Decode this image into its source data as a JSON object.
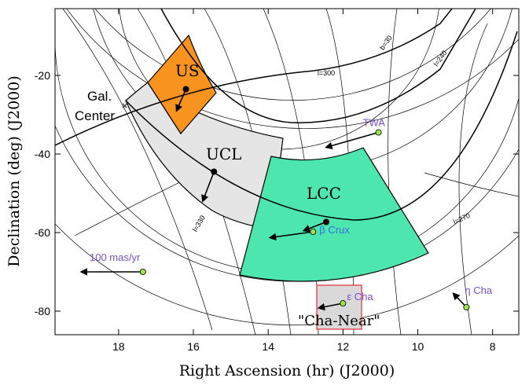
{
  "chart_data": {
    "type": "scatter",
    "xlabel": "Right Ascension (hr) (J2000)",
    "ylabel": "Declination (deg) (J2000)",
    "xlim": [
      19.7,
      7.3
    ],
    "ylim": [
      -86,
      -3
    ],
    "x_ticks": [
      18,
      16,
      14,
      12,
      10,
      8
    ],
    "y_ticks": [
      -20,
      -40,
      -60,
      -80
    ],
    "galactic_lon_labels": [
      {
        "text": "l=300",
        "ra": 12.45,
        "dec": -20
      },
      {
        "text": "l=330",
        "ra": 15.8,
        "dec": -58,
        "rotate": -60
      },
      {
        "text": "b=30",
        "ra": 10.8,
        "dec": -12,
        "rotate": -55
      },
      {
        "text": "l=240",
        "ra": 9.35,
        "dec": -16,
        "rotate": -55
      },
      {
        "text": "l=270",
        "ra": 8.8,
        "dec": -57,
        "rotate": -25
      }
    ],
    "annotations": {
      "gal_center_line1": "Gal.",
      "gal_center_line2": "Center",
      "scale_label": "100 mas/yr",
      "cha_near_label": "\"Cha-Near\""
    },
    "regions": [
      {
        "name": "US",
        "color": "#F7931E"
      },
      {
        "name": "UCL",
        "color": "#E5E5E5"
      },
      {
        "name": "LCC",
        "color": "#4DE6AE"
      },
      {
        "name": "Cha-Near",
        "color": "#D9D9D9",
        "border": "#E0303A"
      }
    ],
    "points": [
      {
        "name": "US",
        "ra": 16.2,
        "dec": -23.5,
        "color": "#000000",
        "label_color": "#000000",
        "pm": [
          16.45,
          -29
        ]
      },
      {
        "name": "UCL",
        "ra": 15.45,
        "dec": -44.5,
        "color": "#000000",
        "label_color": "#000000",
        "pm": [
          15.75,
          -52
        ]
      },
      {
        "name": "LCC",
        "ra": 12.45,
        "dec": -57.3,
        "color": "#000000",
        "label_color": "#000000",
        "pm": [
          13.05,
          -59.5
        ]
      },
      {
        "name": "TWA",
        "ra": 11.05,
        "dec": -34.5,
        "color": "#9BE34C",
        "label_color": "#7A4FD0",
        "pm": [
          12.45,
          -38.3
        ]
      },
      {
        "name": "β Crux",
        "ra": 12.8,
        "dec": -59.8,
        "color": "#9BE34C",
        "label_color": "#3D6BE0",
        "pm": [
          13.95,
          -61.3
        ]
      },
      {
        "name": "ε Cha",
        "ra": 12.0,
        "dec": -78.0,
        "color": "#9BE34C",
        "label_color": "#7A4FD0",
        "pm": [
          12.65,
          -79.2
        ]
      },
      {
        "name": "η Cha",
        "ra": 8.7,
        "dec": -79.0,
        "color": "#9BE34C",
        "label_color": "#7A4FD0",
        "pm": [
          9.05,
          -75.5
        ]
      },
      {
        "name": "scale",
        "ra": 17.35,
        "dec": -70.0,
        "color": "#9BE34C",
        "label_color": "#7A4FD0",
        "pm": [
          19.0,
          -70.0
        ]
      }
    ]
  }
}
